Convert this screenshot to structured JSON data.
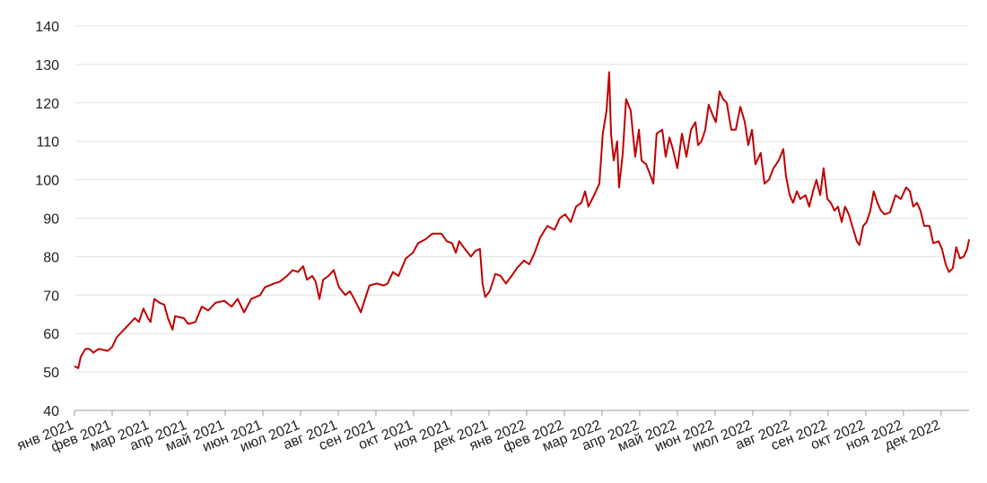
{
  "chart_data": {
    "type": "line",
    "color": "#c00000",
    "grid": true,
    "xlim": [
      0,
      23.74
    ],
    "ylim": [
      40,
      140
    ],
    "yticks": [
      40,
      50,
      60,
      70,
      80,
      90,
      100,
      110,
      120,
      130,
      140
    ],
    "xticks": [
      {
        "value": 0,
        "label": "янв 2021"
      },
      {
        "value": 1,
        "label": "фев 2021"
      },
      {
        "value": 2,
        "label": "мар 2021"
      },
      {
        "value": 3,
        "label": "апр 2021"
      },
      {
        "value": 4,
        "label": "май 2021"
      },
      {
        "value": 5,
        "label": "июн 2021"
      },
      {
        "value": 6,
        "label": "июл 2021"
      },
      {
        "value": 7,
        "label": "авг 2021"
      },
      {
        "value": 8,
        "label": "сен 2021"
      },
      {
        "value": 9,
        "label": "окт 2021"
      },
      {
        "value": 10,
        "label": "ноя 2021"
      },
      {
        "value": 11,
        "label": "дек 2021"
      },
      {
        "value": 12,
        "label": "янв 2022"
      },
      {
        "value": 13,
        "label": "фев 2022"
      },
      {
        "value": 14,
        "label": "мар 2022"
      },
      {
        "value": 15,
        "label": "апр 2022"
      },
      {
        "value": 16,
        "label": "май 2022"
      },
      {
        "value": 17,
        "label": "июн 2022"
      },
      {
        "value": 18,
        "label": "июл 2022"
      },
      {
        "value": 19,
        "label": "авг 2022"
      },
      {
        "value": 20,
        "label": "сен 2022"
      },
      {
        "value": 21,
        "label": "окт 2022"
      },
      {
        "value": 22,
        "label": "ноя 2022"
      },
      {
        "value": 23,
        "label": "дек 2022"
      }
    ],
    "x": [
      0,
      0.1,
      0.17,
      0.29,
      0.4,
      0.5,
      0.64,
      0.88,
      1,
      1.12,
      1.36,
      1.6,
      1.71,
      1.83,
      1.95,
      2.02,
      2.12,
      2.26,
      2.38,
      2.48,
      2.6,
      2.67,
      2.9,
      3.02,
      3.21,
      3.38,
      3.55,
      3.74,
      3.98,
      4.17,
      4.33,
      4.5,
      4.69,
      4.93,
      5.05,
      5.29,
      5.45,
      5.64,
      5.79,
      5.93,
      6.07,
      6.17,
      6.31,
      6.4,
      6.5,
      6.6,
      6.74,
      6.88,
      7.02,
      7.19,
      7.31,
      7.45,
      7.6,
      7.71,
      7.83,
      8.02,
      8.21,
      8.31,
      8.45,
      8.6,
      8.79,
      8.98,
      9.12,
      9.31,
      9.5,
      9.74,
      9.88,
      10.02,
      10.12,
      10.21,
      10.36,
      10.52,
      10.64,
      10.76,
      10.83,
      10.9,
      11.02,
      11.17,
      11.31,
      11.45,
      11.6,
      11.74,
      11.93,
      12.07,
      12.21,
      12.36,
      12.55,
      12.74,
      12.88,
      13.02,
      13.17,
      13.31,
      13.45,
      13.55,
      13.64,
      13.79,
      13.93,
      14.02,
      14.12,
      14.19,
      14.24,
      14.31,
      14.4,
      14.45,
      14.55,
      14.64,
      14.76,
      14.88,
      14.98,
      15.05,
      15.17,
      15.29,
      15.36,
      15.45,
      15.6,
      15.69,
      15.79,
      15.88,
      16,
      16.12,
      16.24,
      16.36,
      16.48,
      16.55,
      16.64,
      16.74,
      16.83,
      16.93,
      17.02,
      17.12,
      17.21,
      17.31,
      17.43,
      17.55,
      17.67,
      17.79,
      17.88,
      17.98,
      18.07,
      18.21,
      18.31,
      18.43,
      18.55,
      18.69,
      18.81,
      18.88,
      18.98,
      19.07,
      19.17,
      19.26,
      19.4,
      19.5,
      19.6,
      19.69,
      19.79,
      19.88,
      19.98,
      20.07,
      20.17,
      20.26,
      20.36,
      20.45,
      20.55,
      20.64,
      20.76,
      20.83,
      20.93,
      21.02,
      21.12,
      21.21,
      21.31,
      21.4,
      21.5,
      21.64,
      21.79,
      21.93,
      22.07,
      22.17,
      22.26,
      22.36,
      22.45,
      22.55,
      22.69,
      22.79,
      22.93,
      23.02,
      23.12,
      23.21,
      23.31,
      23.4,
      23.5,
      23.6,
      23.69,
      23.74
    ],
    "values": [
      51.5,
      51,
      54,
      56,
      56,
      55,
      56,
      55.5,
      56.5,
      59,
      61.5,
      64,
      63,
      66.5,
      64,
      63,
      69,
      68,
      67.5,
      64,
      61,
      64.5,
      64,
      62.5,
      63,
      67,
      66,
      68,
      68.5,
      67,
      69,
      65.5,
      69,
      70,
      72,
      73,
      73.5,
      75,
      76.5,
      76,
      77.5,
      74,
      75,
      73.5,
      69,
      74,
      75,
      76.5,
      72,
      70,
      71,
      68.5,
      65.5,
      69,
      72.5,
      73,
      72.5,
      73,
      76,
      75,
      79.5,
      81,
      83.5,
      84.5,
      86,
      86,
      84,
      83.5,
      81,
      84,
      82,
      80,
      81.5,
      82,
      73,
      69.5,
      71,
      75.5,
      75,
      73,
      75,
      77,
      79,
      78,
      81,
      85,
      88,
      87,
      90,
      91,
      89,
      93,
      94,
      97,
      93,
      96,
      99,
      112,
      118,
      128,
      112,
      105,
      110,
      98,
      107,
      121,
      118,
      106,
      113,
      105,
      104,
      101,
      99,
      112,
      113,
      106,
      111,
      108,
      103,
      112,
      106,
      113,
      115,
      109,
      110,
      113,
      119.5,
      117,
      115,
      123,
      121,
      120,
      113,
      113,
      119,
      115,
      109,
      113,
      104,
      107,
      99,
      100,
      103,
      105,
      108,
      101,
      96,
      94,
      97,
      95,
      96,
      93,
      97,
      100,
      96,
      103,
      95,
      94,
      92,
      93,
      89,
      93,
      91,
      88,
      84,
      83,
      88,
      89,
      92,
      97,
      94,
      92,
      91,
      91.5,
      96,
      95,
      98,
      97,
      93,
      94,
      92,
      88,
      88,
      83.5,
      84,
      82,
      78,
      76,
      77,
      82.5,
      79.5,
      80,
      82,
      84.5
    ]
  }
}
